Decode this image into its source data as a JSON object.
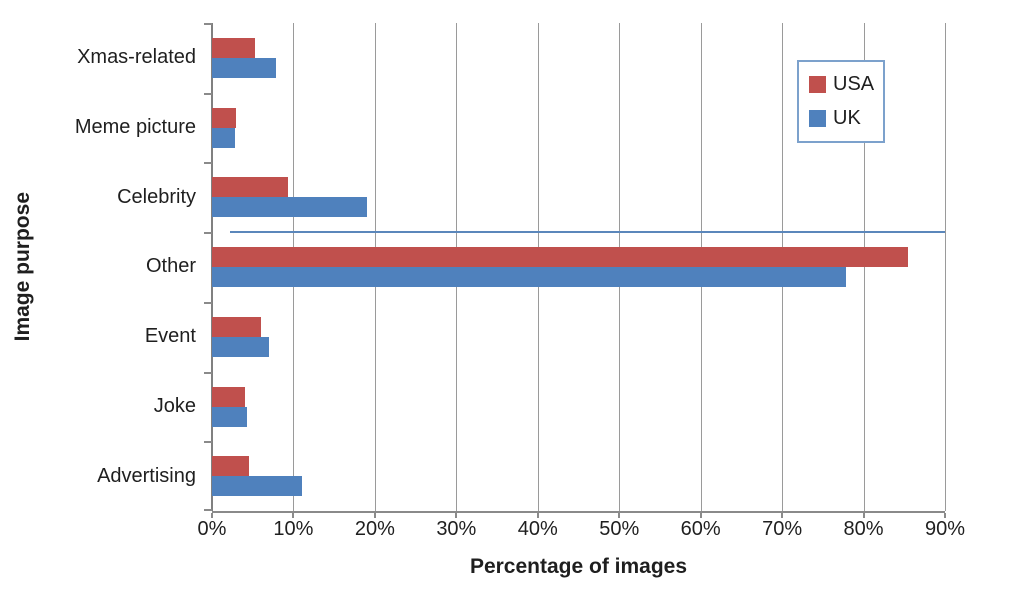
{
  "chart_data": {
    "type": "bar",
    "orientation": "horizontal",
    "title": "",
    "xlabel": "Percentage of images",
    "ylabel": "Image purpose",
    "categories": [
      "Xmas-related",
      "Meme picture",
      "Celebrity",
      "Other",
      "Event",
      "Joke",
      "Advertising"
    ],
    "series": [
      {
        "name": "USA",
        "color": "#C0504D",
        "values": [
          5.3,
          2.9,
          9.3,
          85.5,
          6.0,
          4.1,
          4.5
        ]
      },
      {
        "name": "UK",
        "color": "#4F81BD",
        "values": [
          7.8,
          2.8,
          19.0,
          77.8,
          7.0,
          4.3,
          11.0
        ]
      }
    ],
    "x_ticks": [
      "0%",
      "10%",
      "20%",
      "30%",
      "40%",
      "50%",
      "60%",
      "70%",
      "80%",
      "90%"
    ],
    "xlim": [
      0,
      90
    ],
    "grid": "vertical-only",
    "legend_position": "inside-upper-right",
    "colors": {
      "gridline": "#9A9A9A",
      "axis": "#8A8A8A",
      "text": "#1F1F1F",
      "legend_border": "#7CA1CC",
      "artifact_line": "#5B87BB"
    },
    "artifact_line": {
      "description": "thin stray blue line at boundary between Celebrity and Other rows",
      "start_pct": 2.2,
      "end_pct": 90,
      "boundary_index": 3
    }
  }
}
